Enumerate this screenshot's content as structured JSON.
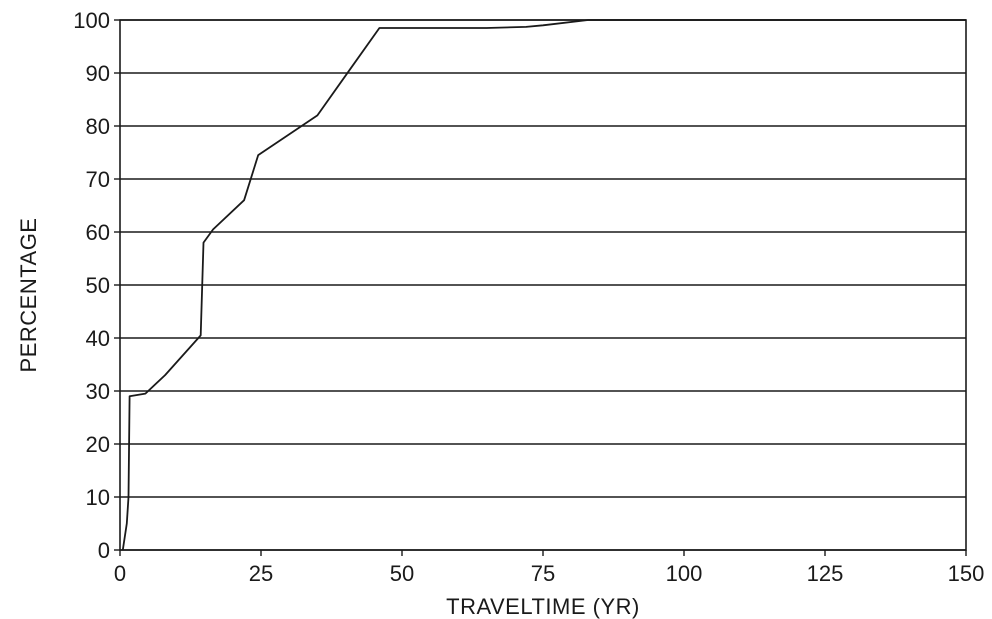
{
  "chart_data": {
    "type": "line",
    "title": "",
    "xlabel": "TRAVELTIME (YR)",
    "ylabel": "PERCENTAGE",
    "xlim": [
      0,
      150
    ],
    "ylim": [
      0,
      100
    ],
    "x_ticks": [
      0,
      25,
      50,
      75,
      100,
      125,
      150
    ],
    "y_ticks": [
      0,
      10,
      20,
      30,
      40,
      50,
      60,
      70,
      80,
      90,
      100
    ],
    "grid": "horizontal",
    "legend": "none",
    "series": [
      {
        "x": [
          0.5,
          1.2,
          1.5,
          1.7,
          4.5,
          8,
          14.3,
          14.8,
          16.5,
          22,
          24.5,
          35,
          41,
          46,
          65,
          72,
          75,
          83,
          150
        ],
        "y": [
          0,
          5,
          10,
          29,
          29.5,
          33,
          40.5,
          58,
          60.5,
          66,
          74.5,
          82,
          91,
          98.5,
          98.5,
          98.7,
          99,
          100,
          100
        ]
      }
    ]
  },
  "colors": {
    "line": "#1a1a1a",
    "background": "#ffffff"
  }
}
